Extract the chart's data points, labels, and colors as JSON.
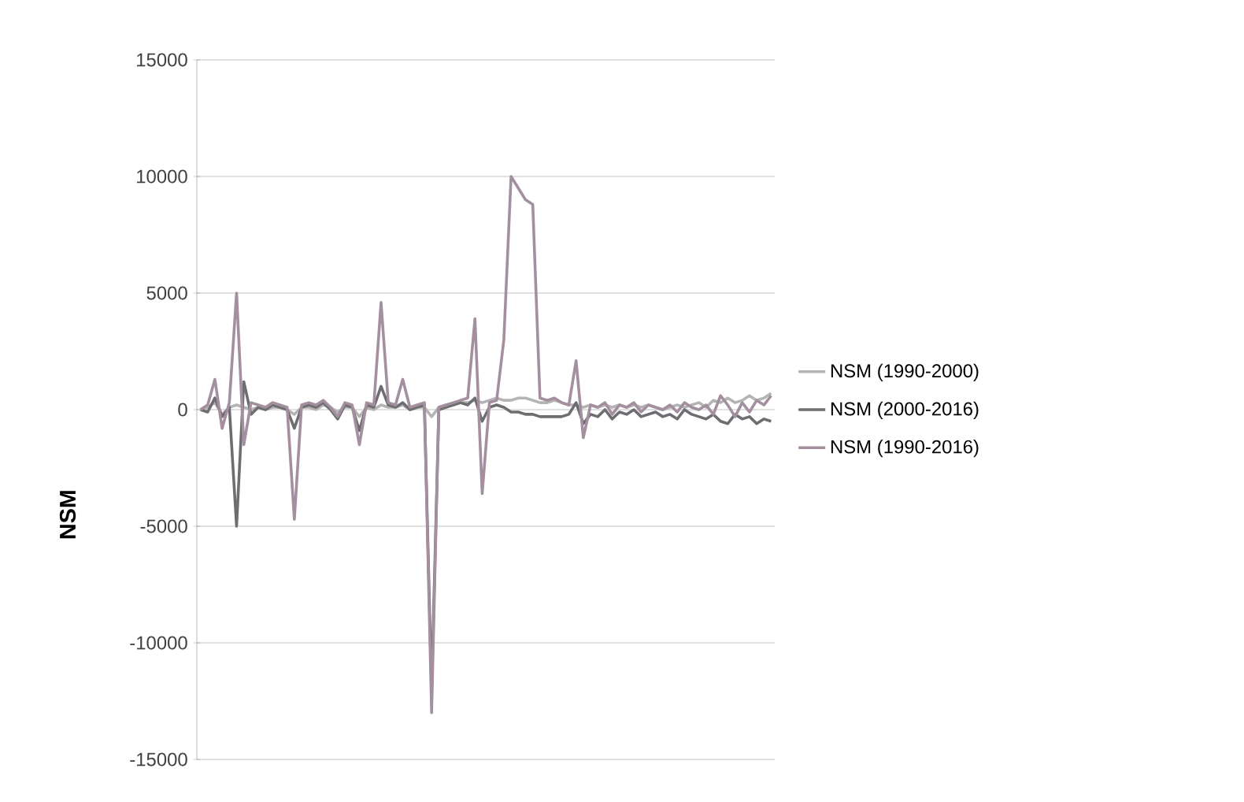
{
  "chart_data": {
    "type": "line",
    "ylabel": "NSM",
    "categories": [
      null,
      null,
      null,
      null,
      null,
      null,
      null,
      null,
      null,
      null,
      null,
      null,
      null,
      null,
      null,
      null,
      null,
      null,
      null,
      null,
      null,
      null,
      null,
      null,
      null,
      null,
      null,
      null,
      null,
      null,
      null,
      null,
      null,
      null,
      null,
      null,
      null,
      null,
      null,
      null,
      null,
      null,
      null,
      null,
      null,
      null,
      null,
      null,
      null,
      null,
      null,
      null,
      null,
      null,
      null,
      null,
      null,
      null,
      null,
      null,
      null,
      null,
      null,
      null,
      null,
      null,
      null,
      null,
      null,
      null,
      null,
      null,
      null,
      null,
      null,
      null,
      null,
      null,
      null,
      null
    ],
    "series": [
      {
        "name": "NSM (1990-2000)",
        "color": "#b4b4b4",
        "values": [
          0,
          100,
          300,
          -200,
          100,
          200,
          100,
          0,
          100,
          0,
          100,
          100,
          0,
          -200,
          100,
          100,
          0,
          200,
          100,
          -100,
          100,
          100,
          -300,
          100,
          0,
          200,
          100,
          100,
          200,
          0,
          100,
          100,
          -300,
          100,
          200,
          200,
          300,
          300,
          400,
          300,
          400,
          500,
          400,
          400,
          500,
          500,
          400,
          300,
          300,
          400,
          300,
          200,
          200,
          100,
          200,
          100,
          200,
          100,
          200,
          100,
          200,
          100,
          200,
          100,
          0,
          100,
          200,
          100,
          200,
          300,
          100,
          400,
          300,
          500,
          300,
          400,
          600,
          400,
          500,
          700
        ]
      },
      {
        "name": "NSM (2000-2016)",
        "color": "#6e6e72",
        "values": [
          0,
          -100,
          500,
          -300,
          100,
          -5000,
          1200,
          -200,
          100,
          0,
          200,
          100,
          0,
          -800,
          100,
          200,
          100,
          300,
          0,
          -400,
          200,
          100,
          -900,
          200,
          100,
          1000,
          200,
          100,
          300,
          0,
          100,
          200,
          -12000,
          0,
          100,
          200,
          300,
          200,
          500,
          -500,
          100,
          200,
          100,
          -100,
          -100,
          -200,
          -200,
          -300,
          -300,
          -300,
          -300,
          -200,
          300,
          -600,
          -200,
          -300,
          0,
          -400,
          -100,
          -200,
          0,
          -300,
          -200,
          -100,
          -300,
          -200,
          -400,
          0,
          -200,
          -300,
          -400,
          -200,
          -500,
          -600,
          -200,
          -400,
          -300,
          -600,
          -400,
          -500
        ]
      },
      {
        "name": "NSM (1990-2016)",
        "color": "#a38f9f",
        "values": [
          0,
          200,
          1300,
          -800,
          300,
          5000,
          -1500,
          300,
          200,
          100,
          300,
          200,
          100,
          -4700,
          200,
          300,
          200,
          400,
          100,
          -300,
          300,
          200,
          -1500,
          300,
          200,
          4600,
          300,
          200,
          1300,
          100,
          200,
          300,
          -13000,
          100,
          200,
          300,
          400,
          500,
          3900,
          -3600,
          300,
          400,
          3000,
          10000,
          9500,
          9000,
          8800,
          500,
          400,
          500,
          300,
          200,
          2100,
          -1200,
          200,
          100,
          300,
          -200,
          200,
          100,
          300,
          -100,
          200,
          100,
          0,
          200,
          -100,
          300,
          100,
          0,
          200,
          -200,
          600,
          200,
          -300,
          300,
          -100,
          400,
          200,
          600
        ]
      }
    ],
    "ylim": [
      -15000,
      15000
    ],
    "yticks": [
      -15000,
      -10000,
      -5000,
      0,
      5000,
      10000,
      15000
    ],
    "grid": "y",
    "legend": "right"
  }
}
